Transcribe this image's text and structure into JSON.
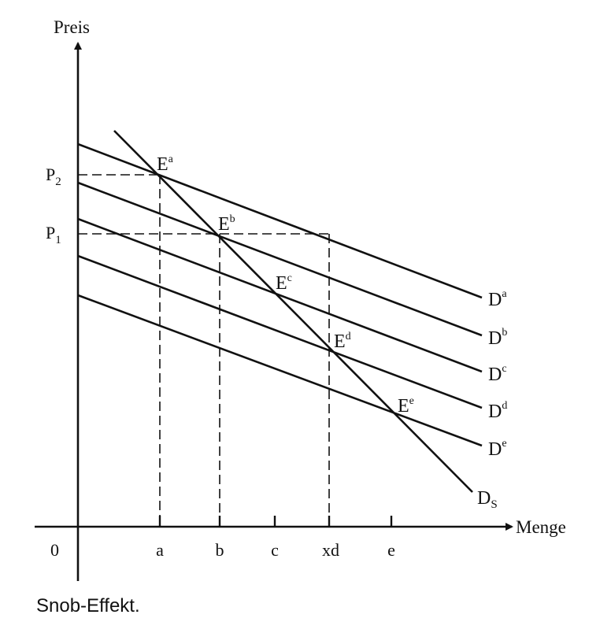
{
  "axes": {
    "y_label": "Preis",
    "x_label": "Menge",
    "origin": "0"
  },
  "price_levels": [
    {
      "main": "P",
      "sub": "2"
    },
    {
      "main": "P",
      "sub": "1"
    }
  ],
  "quantity_ticks": [
    "a",
    "b",
    "c",
    "xd",
    "e"
  ],
  "demand_curves": [
    {
      "main": "D",
      "sup": "a"
    },
    {
      "main": "D",
      "sup": "b"
    },
    {
      "main": "D",
      "sup": "c"
    },
    {
      "main": "D",
      "sup": "d"
    },
    {
      "main": "D",
      "sup": "e"
    }
  ],
  "snob_curve": {
    "main": "D",
    "sub": "S"
  },
  "equilibria": [
    {
      "main": "E",
      "sup": "a"
    },
    {
      "main": "E",
      "sup": "b"
    },
    {
      "main": "E",
      "sup": "c"
    },
    {
      "main": "E",
      "sup": "d"
    },
    {
      "main": "E",
      "sup": "e"
    }
  ],
  "caption": "Snob-Effekt."
}
